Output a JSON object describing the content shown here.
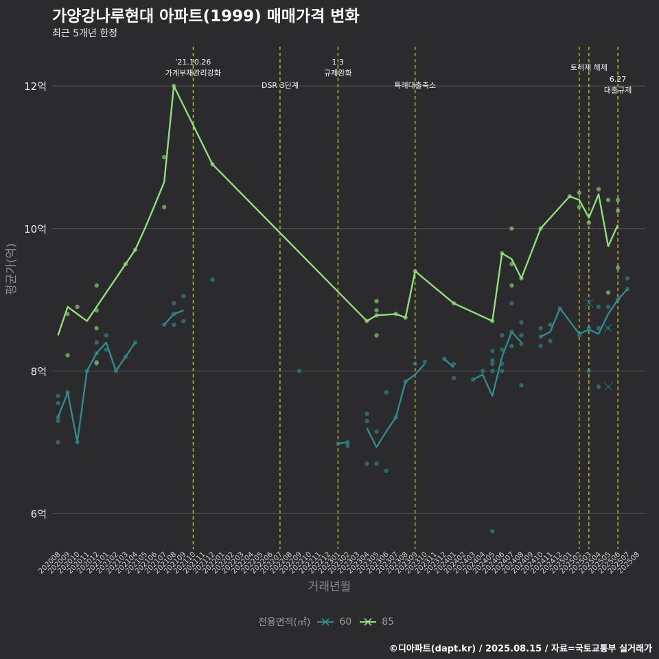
{
  "chart_data": {
    "type": "line",
    "title": "가양강나루현대 아파트(1999) 매매가격 변화",
    "subtitle": "최근 5개년 한정",
    "xlabel": "거래년월",
    "ylabel": "평균가(억)",
    "ylim": [
      5.5,
      12.55
    ],
    "y_ticks": [
      {
        "value": 6,
        "label": "6억"
      },
      {
        "value": 8,
        "label": "8억"
      },
      {
        "value": 10,
        "label": "10억"
      },
      {
        "value": 12,
        "label": "12억"
      }
    ],
    "grid": true,
    "categories": [
      "202008",
      "202009",
      "202010",
      "202011",
      "202012",
      "202101",
      "202102",
      "202103",
      "202104",
      "202105",
      "202106",
      "202107",
      "202108",
      "202109",
      "202110",
      "202111",
      "202112",
      "202201",
      "202202",
      "202203",
      "202204",
      "202205",
      "202206",
      "202207",
      "202208",
      "202209",
      "202210",
      "202211",
      "202212",
      "202301",
      "202302",
      "202303",
      "202304",
      "202305",
      "202306",
      "202307",
      "202308",
      "202309",
      "202310",
      "202311",
      "202312",
      "202401",
      "202402",
      "202403",
      "202404",
      "202405",
      "202406",
      "202407",
      "202408",
      "202409",
      "202410",
      "202411",
      "202412",
      "202501",
      "202502",
      "202503",
      "202504",
      "202505",
      "202506",
      "202507",
      "202508"
    ],
    "series": [
      {
        "name": "60",
        "color": "#2e8c8e",
        "line": [
          [
            0,
            7.35
          ],
          [
            1,
            7.7
          ],
          [
            2,
            7.0
          ],
          [
            3,
            8.0
          ],
          [
            4,
            8.25
          ],
          [
            5,
            8.4
          ],
          [
            6,
            8.0
          ],
          [
            7,
            8.2
          ],
          [
            8,
            8.4
          ],
          null,
          [
            11,
            8.65
          ],
          [
            12,
            8.8
          ],
          [
            13,
            8.85
          ],
          null,
          [
            16,
            9.28
          ],
          null,
          [
            25,
            8.0
          ],
          null,
          [
            29,
            6.98
          ],
          [
            30,
            7.0
          ],
          null,
          [
            32,
            7.2
          ],
          [
            33,
            6.93
          ],
          [
            34,
            7.15
          ],
          [
            35,
            7.35
          ],
          [
            36,
            7.85
          ],
          [
            37,
            7.95
          ],
          [
            38,
            8.1
          ],
          null,
          [
            40,
            8.17
          ],
          [
            41,
            8.05
          ],
          null,
          [
            43,
            7.88
          ],
          [
            44,
            7.95
          ],
          [
            45,
            7.65
          ],
          [
            46,
            8.2
          ],
          [
            47,
            8.55
          ],
          [
            48,
            8.4
          ],
          null,
          [
            50,
            8.48
          ],
          [
            51,
            8.55
          ],
          [
            52,
            8.88
          ],
          [
            53,
            8.7
          ],
          [
            54,
            8.52
          ],
          [
            55,
            8.58
          ],
          [
            56,
            8.52
          ],
          [
            57,
            8.8
          ],
          [
            58,
            9.0
          ],
          [
            59,
            9.15
          ]
        ],
        "points": [
          [
            0,
            7.65
          ],
          [
            0,
            7.55
          ],
          [
            0,
            7.35
          ],
          [
            0,
            7.3
          ],
          [
            0,
            7.0
          ],
          [
            1,
            7.7
          ],
          [
            2,
            7.0
          ],
          [
            3,
            8.0
          ],
          [
            4,
            8.4
          ],
          [
            4,
            8.25
          ],
          [
            4,
            8.1
          ],
          [
            5,
            8.5
          ],
          [
            5,
            8.3
          ],
          [
            6,
            8.0
          ],
          [
            7,
            8.2
          ],
          [
            8,
            8.4
          ],
          [
            11,
            8.65
          ],
          [
            12,
            8.95
          ],
          [
            12,
            8.8
          ],
          [
            12,
            8.65
          ],
          [
            13,
            9.05
          ],
          [
            13,
            8.7
          ],
          [
            16,
            9.28
          ],
          [
            25,
            8.0
          ],
          [
            29,
            6.98
          ],
          [
            30,
            7.0
          ],
          [
            30,
            6.95
          ],
          [
            32,
            7.4
          ],
          [
            32,
            7.3
          ],
          [
            32,
            6.7
          ],
          [
            33,
            6.7
          ],
          [
            33,
            7.15
          ],
          [
            34,
            7.7
          ],
          [
            34,
            6.6
          ],
          [
            35,
            7.35
          ],
          [
            36,
            7.85
          ],
          [
            37,
            8.1
          ],
          [
            38,
            8.13
          ],
          [
            40,
            8.17
          ],
          [
            41,
            8.1
          ],
          [
            41,
            7.9
          ],
          [
            43,
            7.88
          ],
          [
            44,
            8.0
          ],
          [
            45,
            8.28
          ],
          [
            45,
            8.15
          ],
          [
            45,
            8.1
          ],
          [
            45,
            8.0
          ],
          [
            45,
            5.75
          ],
          [
            46,
            8.5
          ],
          [
            46,
            8.3
          ],
          [
            46,
            8.1
          ],
          [
            46,
            8.0
          ],
          [
            47,
            8.95
          ],
          [
            47,
            8.55
          ],
          [
            47,
            8.35
          ],
          [
            48,
            8.68
          ],
          [
            48,
            8.5
          ],
          [
            48,
            8.38
          ],
          [
            48,
            7.8
          ],
          [
            50,
            8.6
          ],
          [
            50,
            8.48
          ],
          [
            50,
            8.35
          ],
          [
            51,
            8.65
          ],
          [
            51,
            8.42
          ],
          [
            52,
            8.88
          ],
          [
            54,
            8.5
          ],
          [
            55,
            8.95
          ],
          [
            55,
            8.0
          ],
          [
            55,
            8.6
          ],
          [
            56,
            8.9
          ],
          [
            56,
            8.6
          ],
          [
            56,
            7.78
          ],
          [
            57,
            8.9
          ],
          [
            57,
            8.6
          ],
          [
            58,
            9.0
          ],
          [
            59,
            9.3
          ],
          [
            59,
            9.15
          ]
        ],
        "cancelled": [
          [
            55,
            8.95
          ],
          [
            57,
            8.6
          ],
          [
            57,
            7.78
          ]
        ]
      },
      {
        "name": "85",
        "color": "#8fe07a",
        "line": [
          [
            0,
            8.5
          ],
          [
            1,
            8.9
          ],
          [
            2,
            8.8
          ],
          [
            3,
            8.7
          ],
          [
            4,
            8.9
          ],
          [
            5,
            9.1
          ],
          [
            6,
            9.3
          ],
          [
            7,
            9.5
          ],
          [
            8,
            9.7
          ],
          [
            9,
            10.0
          ],
          [
            10,
            10.32
          ],
          [
            11,
            10.65
          ],
          [
            12,
            12.0
          ],
          [
            16,
            10.9
          ],
          [
            32,
            8.7
          ],
          [
            33,
            8.78
          ],
          [
            34,
            8.79
          ],
          [
            35,
            8.8
          ],
          [
            36,
            8.75
          ],
          [
            37,
            9.4
          ],
          [
            41,
            8.95
          ],
          [
            45,
            8.7
          ],
          [
            46,
            9.65
          ],
          [
            47,
            9.57
          ],
          [
            48,
            9.3
          ],
          [
            50,
            10.0
          ],
          [
            53,
            10.45
          ],
          [
            54,
            10.4
          ],
          [
            55,
            10.15
          ],
          [
            56,
            10.48
          ],
          [
            57,
            9.75
          ],
          [
            58,
            10.05
          ]
        ],
        "points": [
          [
            1,
            8.8
          ],
          [
            1,
            8.22
          ],
          [
            2,
            8.9
          ],
          [
            4,
            9.2
          ],
          [
            4,
            8.85
          ],
          [
            4,
            8.6
          ],
          [
            4,
            8.12
          ],
          [
            7,
            9.5
          ],
          [
            8,
            9.7
          ],
          [
            11,
            11.0
          ],
          [
            11,
            10.3
          ],
          [
            12,
            12.0
          ],
          [
            16,
            10.9
          ],
          [
            32,
            8.7
          ],
          [
            33,
            8.98
          ],
          [
            33,
            8.85
          ],
          [
            33,
            8.78
          ],
          [
            33,
            8.5
          ],
          [
            35,
            8.8
          ],
          [
            36,
            8.75
          ],
          [
            37,
            9.4
          ],
          [
            41,
            8.95
          ],
          [
            45,
            8.7
          ],
          [
            46,
            9.65
          ],
          [
            47,
            10.0
          ],
          [
            47,
            9.5
          ],
          [
            47,
            9.2
          ],
          [
            48,
            9.3
          ],
          [
            50,
            10.0
          ],
          [
            53,
            10.45
          ],
          [
            54,
            10.5
          ],
          [
            54,
            10.3
          ],
          [
            55,
            10.08
          ],
          [
            56,
            10.55
          ],
          [
            57,
            10.4
          ],
          [
            57,
            9.1
          ],
          [
            58,
            10.4
          ],
          [
            58,
            10.25
          ],
          [
            58,
            9.45
          ]
        ]
      }
    ],
    "annotations": [
      {
        "x": 14,
        "lines": [
          "'21.10.26",
          "가계부채관리강화"
        ]
      },
      {
        "x": 23,
        "lines": [
          "DSR 3단계"
        ]
      },
      {
        "x": 29,
        "lines": [
          "1.3",
          "규제완화"
        ]
      },
      {
        "x": 37,
        "lines": [
          "특례대출축소"
        ]
      },
      {
        "x": 54,
        "lines": []
      },
      {
        "x": 55,
        "lines": [
          "토허제 해제"
        ]
      },
      {
        "x": 58,
        "lines": [
          "6.27",
          "대출규제"
        ]
      }
    ],
    "legend": {
      "title": "전용면적(㎡)",
      "position": "bottom"
    }
  },
  "caption": "©디아파트(dapt.kr) / 2025.08.15 / 자료=국토교통부 실거래가"
}
